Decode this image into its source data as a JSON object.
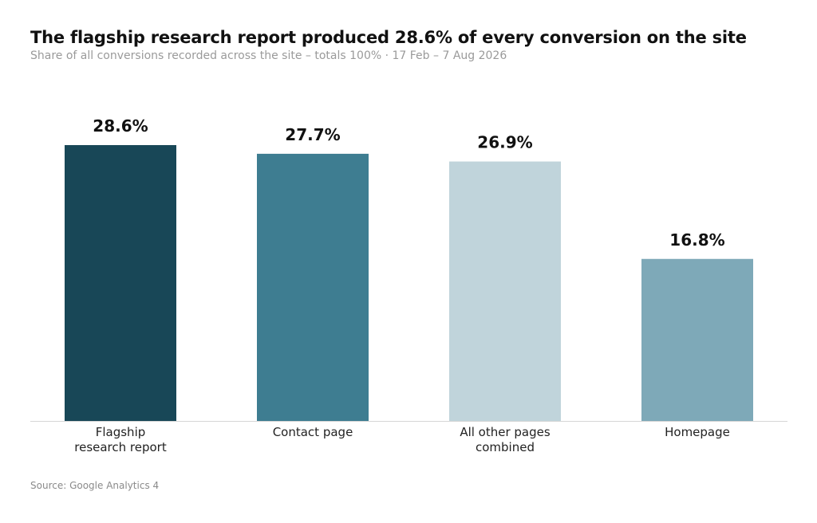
{
  "title": "The flagship research report produced 28.6% of every conversion on the site",
  "subtitle": "Share of all conversions recorded across the site – totals 100%  ·  17 Feb – 7 Aug 2026",
  "source": "Source: Google Analytics 4",
  "chart_data": {
    "type": "bar",
    "categories": [
      [
        "Flagship",
        "research report"
      ],
      [
        "Contact page"
      ],
      [
        "All other pages",
        "combined"
      ],
      [
        "Homepage"
      ]
    ],
    "values": [
      28.6,
      27.7,
      26.9,
      16.8
    ],
    "value_labels": [
      "28.6%",
      "27.7%",
      "26.9%",
      "16.8%"
    ],
    "colors": [
      "#184757",
      "#3e7d91",
      "#c0d4db",
      "#7ea9b8"
    ],
    "ylim": [
      0,
      30
    ],
    "grid": false,
    "legend": "none"
  }
}
